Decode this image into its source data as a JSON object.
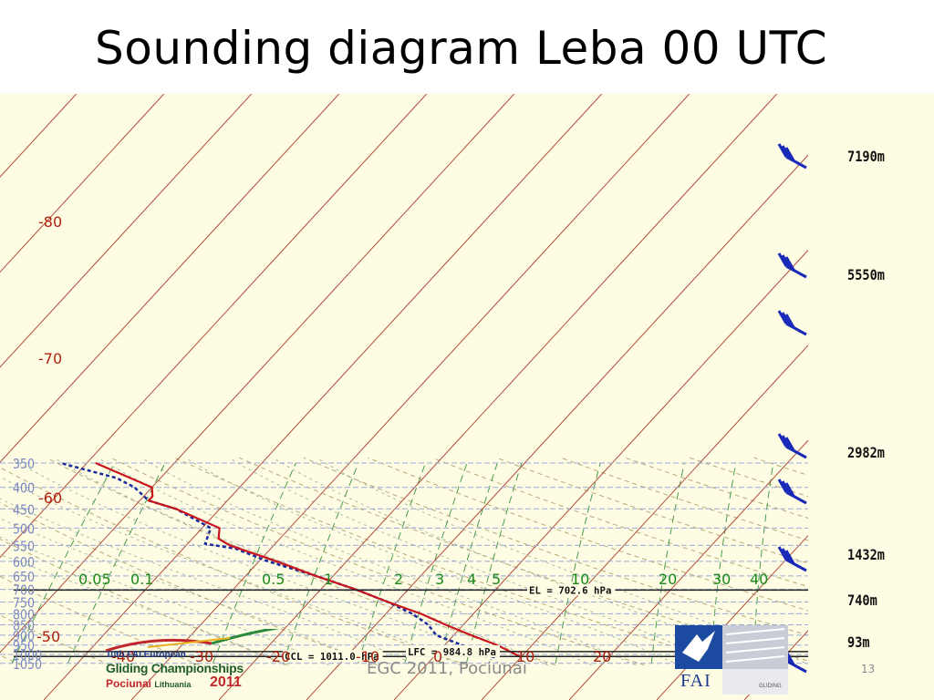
{
  "slide": {
    "title": "Sounding diagram Leba 00 UTC",
    "footer": "EGC 2011, Pociunai",
    "page_number": "13"
  },
  "diagram": {
    "pressure_levels": [
      "350",
      "400",
      "450",
      "500",
      "550",
      "600",
      "650",
      "700",
      "750",
      "800",
      "850",
      "900",
      "950",
      "1000",
      "1050"
    ],
    "isotherm_labels": [
      "-80",
      "-70",
      "-60",
      "-50",
      "-40",
      "-30",
      "-20",
      "-10",
      "0",
      "10",
      "20"
    ],
    "mixing_ratio_labels": [
      "0.05",
      "0.1",
      "0.5",
      "1",
      "2",
      "3",
      "4",
      "5",
      "10",
      "20",
      "30",
      "40"
    ],
    "height_labels": [
      "7190m",
      "5550m",
      "2982m",
      "1432m",
      "740m",
      "93m"
    ],
    "levels": [
      {
        "label": "EL = 702.6 hPa",
        "pressure": 702.6
      },
      {
        "label": "LFC = 984.8 hPa",
        "pressure": 984.8
      },
      {
        "label": "CCL = 1011.0 hPa",
        "pressure": 1011.0
      }
    ],
    "temperature_profile": [
      {
        "p": 1015,
        "t": 10
      },
      {
        "p": 950,
        "t": 6
      },
      {
        "p": 900,
        "t": 2
      },
      {
        "p": 850,
        "t": -2
      },
      {
        "p": 800,
        "t": -6
      },
      {
        "p": 750,
        "t": -11
      },
      {
        "p": 700,
        "t": -16
      },
      {
        "p": 650,
        "t": -22
      },
      {
        "p": 600,
        "t": -28
      },
      {
        "p": 550,
        "t": -35
      },
      {
        "p": 530,
        "t": -37
      },
      {
        "p": 500,
        "t": -38
      },
      {
        "p": 450,
        "t": -45
      },
      {
        "p": 430,
        "t": -49
      },
      {
        "p": 420,
        "t": -49
      },
      {
        "p": 400,
        "t": -50
      },
      {
        "p": 350,
        "t": -59
      }
    ],
    "dewpoint_profile": [
      {
        "p": 1015,
        "t": 7
      },
      {
        "p": 985,
        "t": 4
      },
      {
        "p": 950,
        "t": 2
      },
      {
        "p": 900,
        "t": -2
      },
      {
        "p": 850,
        "t": -4
      },
      {
        "p": 800,
        "t": -7
      },
      {
        "p": 750,
        "t": -11
      },
      {
        "p": 700,
        "t": -16
      },
      {
        "p": 650,
        "t": -22
      },
      {
        "p": 600,
        "t": -29
      },
      {
        "p": 560,
        "t": -34
      },
      {
        "p": 545,
        "t": -38
      },
      {
        "p": 500,
        "t": -39
      },
      {
        "p": 450,
        "t": -45
      },
      {
        "p": 430,
        "t": -49
      },
      {
        "p": 400,
        "t": -52
      },
      {
        "p": 380,
        "t": -55
      },
      {
        "p": 350,
        "t": -63
      }
    ],
    "colors": {
      "background": "#fefde4",
      "isobar": "#9aa8d8",
      "isotherm": "#b04a3a",
      "mixing_ratio": "#4a9a4a",
      "adiabat_dry": "#b8a878",
      "adiabat_moist": "#a8b8a8",
      "temperature": "#c8141c",
      "dewpoint": "#1a2a9a",
      "level_line": "#222222",
      "wind_barb": "#1a2ab8",
      "axis_label": "#7a8ac0",
      "isotherm_label": "#b02010",
      "mixing_label": "#1a8a1a"
    }
  },
  "logos": {
    "egc": {
      "line1": "10th FAI European",
      "line2": "Gliding Championships",
      "line3_place": "Pociunai",
      "line3_country": "Lithuania",
      "year": "2011"
    },
    "fai": {
      "text": "FAI",
      "caption": "GLIDING"
    }
  }
}
